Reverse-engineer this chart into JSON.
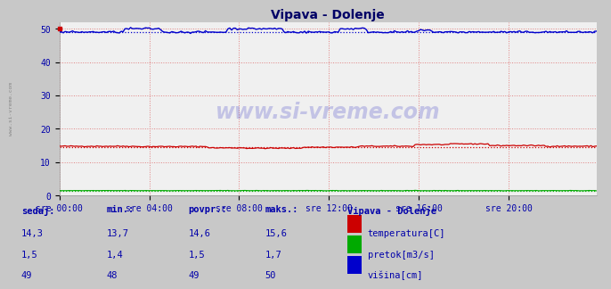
{
  "title": "Vipava - Dolenje",
  "bg_color": "#c8c8c8",
  "plot_bg_color": "#f0f0f0",
  "grid_color": "#e08080",
  "xlim": [
    0,
    287
  ],
  "ylim": [
    0,
    52
  ],
  "yticks": [
    0,
    10,
    20,
    30,
    40,
    50
  ],
  "xtick_labels": [
    "sre 00:00",
    "sre 04:00",
    "sre 08:00",
    "sre 12:00",
    "sre 16:00",
    "sre 20:00"
  ],
  "xtick_positions": [
    0,
    48,
    96,
    144,
    192,
    240
  ],
  "temp_color": "#cc0000",
  "flow_color": "#00aa00",
  "height_color": "#0000cc",
  "title_color": "#000066",
  "axis_color": "#0000aa",
  "label_color": "#0000aa",
  "watermark": "www.si-vreme.com",
  "legend_title": "Vipava - Dolenje",
  "table_headers": [
    "sedaj:",
    "min.:",
    "povpr.:",
    "maks.:"
  ],
  "table_col1": [
    "14,3",
    "1,5",
    "49"
  ],
  "table_col2": [
    "13,7",
    "1,4",
    "48"
  ],
  "table_col3": [
    "14,6",
    "1,5",
    "49"
  ],
  "table_col4": [
    "15,6",
    "1,7",
    "50"
  ],
  "legend_labels": [
    "temperatura[C]",
    "pretok[m3/s]",
    "višina[cm]"
  ],
  "legend_colors": [
    "#cc0000",
    "#00aa00",
    "#0000cc"
  ]
}
